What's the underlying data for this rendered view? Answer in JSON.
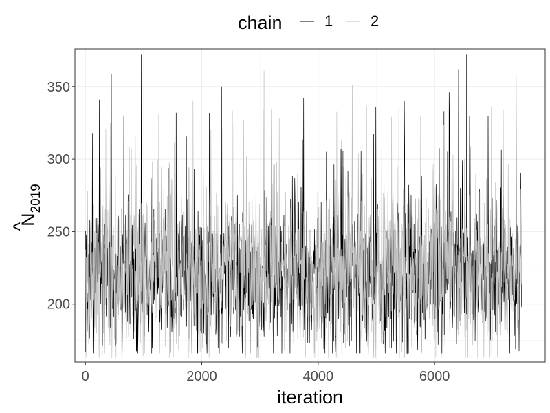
{
  "chart_data": {
    "type": "line",
    "title": "",
    "xlabel": "iteration",
    "ylabel_main": "N",
    "ylabel_hat": "^",
    "ylabel_sub": "2019",
    "xlim": [
      -180,
      7900
    ],
    "ylim": [
      160,
      376
    ],
    "x_ticks": [
      0,
      2000,
      4000,
      6000
    ],
    "x_tick_labels": [
      "0",
      "2000",
      "4000",
      "6000"
    ],
    "y_ticks": [
      200,
      250,
      300,
      350
    ],
    "y_tick_labels": [
      "200",
      "250",
      "300",
      "350"
    ],
    "grid": true,
    "legend": {
      "title": "chain",
      "placement": "top"
    },
    "n_iterations": 7500,
    "series": [
      {
        "name": "1",
        "color": "#000000",
        "typical_range": [
          188,
          250
        ],
        "approx_min": 166,
        "approx_max": 372,
        "spikes": [
          {
            "x": 960,
            "y": 372
          },
          {
            "x": 6550,
            "y": 372
          },
          {
            "x": 7400,
            "y": 358
          },
          {
            "x": 240,
            "y": 341
          },
          {
            "x": 3750,
            "y": 342
          },
          {
            "x": 6250,
            "y": 346
          },
          {
            "x": 2340,
            "y": 350
          },
          {
            "x": 5480,
            "y": 340
          },
          {
            "x": 120,
            "y": 318
          },
          {
            "x": 660,
            "y": 330
          },
          {
            "x": 1560,
            "y": 332
          },
          {
            "x": 4990,
            "y": 336
          },
          {
            "x": 6920,
            "y": 330
          },
          {
            "x": 1140,
            "y": 166
          },
          {
            "x": 4860,
            "y": 165
          },
          {
            "x": 5530,
            "y": 166
          },
          {
            "x": 3580,
            "y": 172
          }
        ]
      },
      {
        "name": "2",
        "color": "#bebebe",
        "typical_range": [
          190,
          255
        ],
        "approx_min": 163,
        "approx_max": 361,
        "spikes": [
          {
            "x": 3070,
            "y": 361
          },
          {
            "x": 6830,
            "y": 355
          },
          {
            "x": 1850,
            "y": 340
          },
          {
            "x": 1260,
            "y": 331
          },
          {
            "x": 4320,
            "y": 333
          },
          {
            "x": 5760,
            "y": 330
          },
          {
            "x": 7180,
            "y": 334
          },
          {
            "x": 430,
            "y": 325
          },
          {
            "x": 2720,
            "y": 327
          },
          {
            "x": 6740,
            "y": 163
          },
          {
            "x": 3420,
            "y": 168
          },
          {
            "x": 2010,
            "y": 170
          }
        ]
      }
    ]
  }
}
